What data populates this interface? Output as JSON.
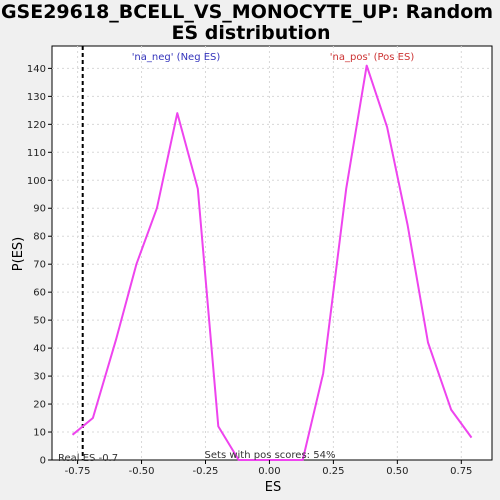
{
  "chart_data": {
    "type": "line",
    "title_line1": "GSE29618_BCELL_VS_MONOCYTE_UP: Random",
    "title_line2": "ES distribution",
    "xlabel": "ES",
    "ylabel": "P(ES)",
    "xlim": [
      -0.85,
      0.87
    ],
    "ylim": [
      0,
      148
    ],
    "x_ticks": [
      -0.75,
      -0.5,
      -0.25,
      0.0,
      0.25,
      0.5,
      0.75
    ],
    "x_tick_labels": [
      "-0.75",
      "-0.50",
      "-0.25",
      "0.00",
      "0.25",
      "0.50",
      "0.75"
    ],
    "y_ticks": [
      0,
      10,
      20,
      30,
      40,
      50,
      60,
      70,
      80,
      90,
      100,
      110,
      120,
      130,
      140
    ],
    "y_tick_labels": [
      "0",
      "10",
      "20",
      "30",
      "40",
      "50",
      "60",
      "70",
      "80",
      "90",
      "100",
      "110",
      "120",
      "130",
      "140"
    ],
    "grid": true,
    "series": [
      {
        "color": "#ee44ee",
        "x": [
          -0.77,
          -0.69,
          -0.6,
          -0.52,
          -0.44,
          -0.36,
          -0.28,
          -0.2,
          -0.12,
          -0.04,
          0.04,
          0.13,
          0.21,
          0.3,
          0.38,
          0.46,
          0.54,
          0.62,
          0.71,
          0.79
        ],
        "y": [
          9,
          15,
          43,
          70,
          90,
          124,
          97,
          12,
          0,
          0,
          0,
          0,
          31,
          97,
          141,
          119,
          84,
          42,
          18,
          8
        ]
      }
    ],
    "real_es_value": -0.73,
    "real_es_label": "Real ES -0.7",
    "neg_label": "'na_neg' (Neg ES)",
    "pos_label": "'na_pos' (Pos ES)",
    "neg_color": "#3333bb",
    "pos_color": "#cc3333",
    "footer_label": "Sets with pos scores: 54%"
  }
}
